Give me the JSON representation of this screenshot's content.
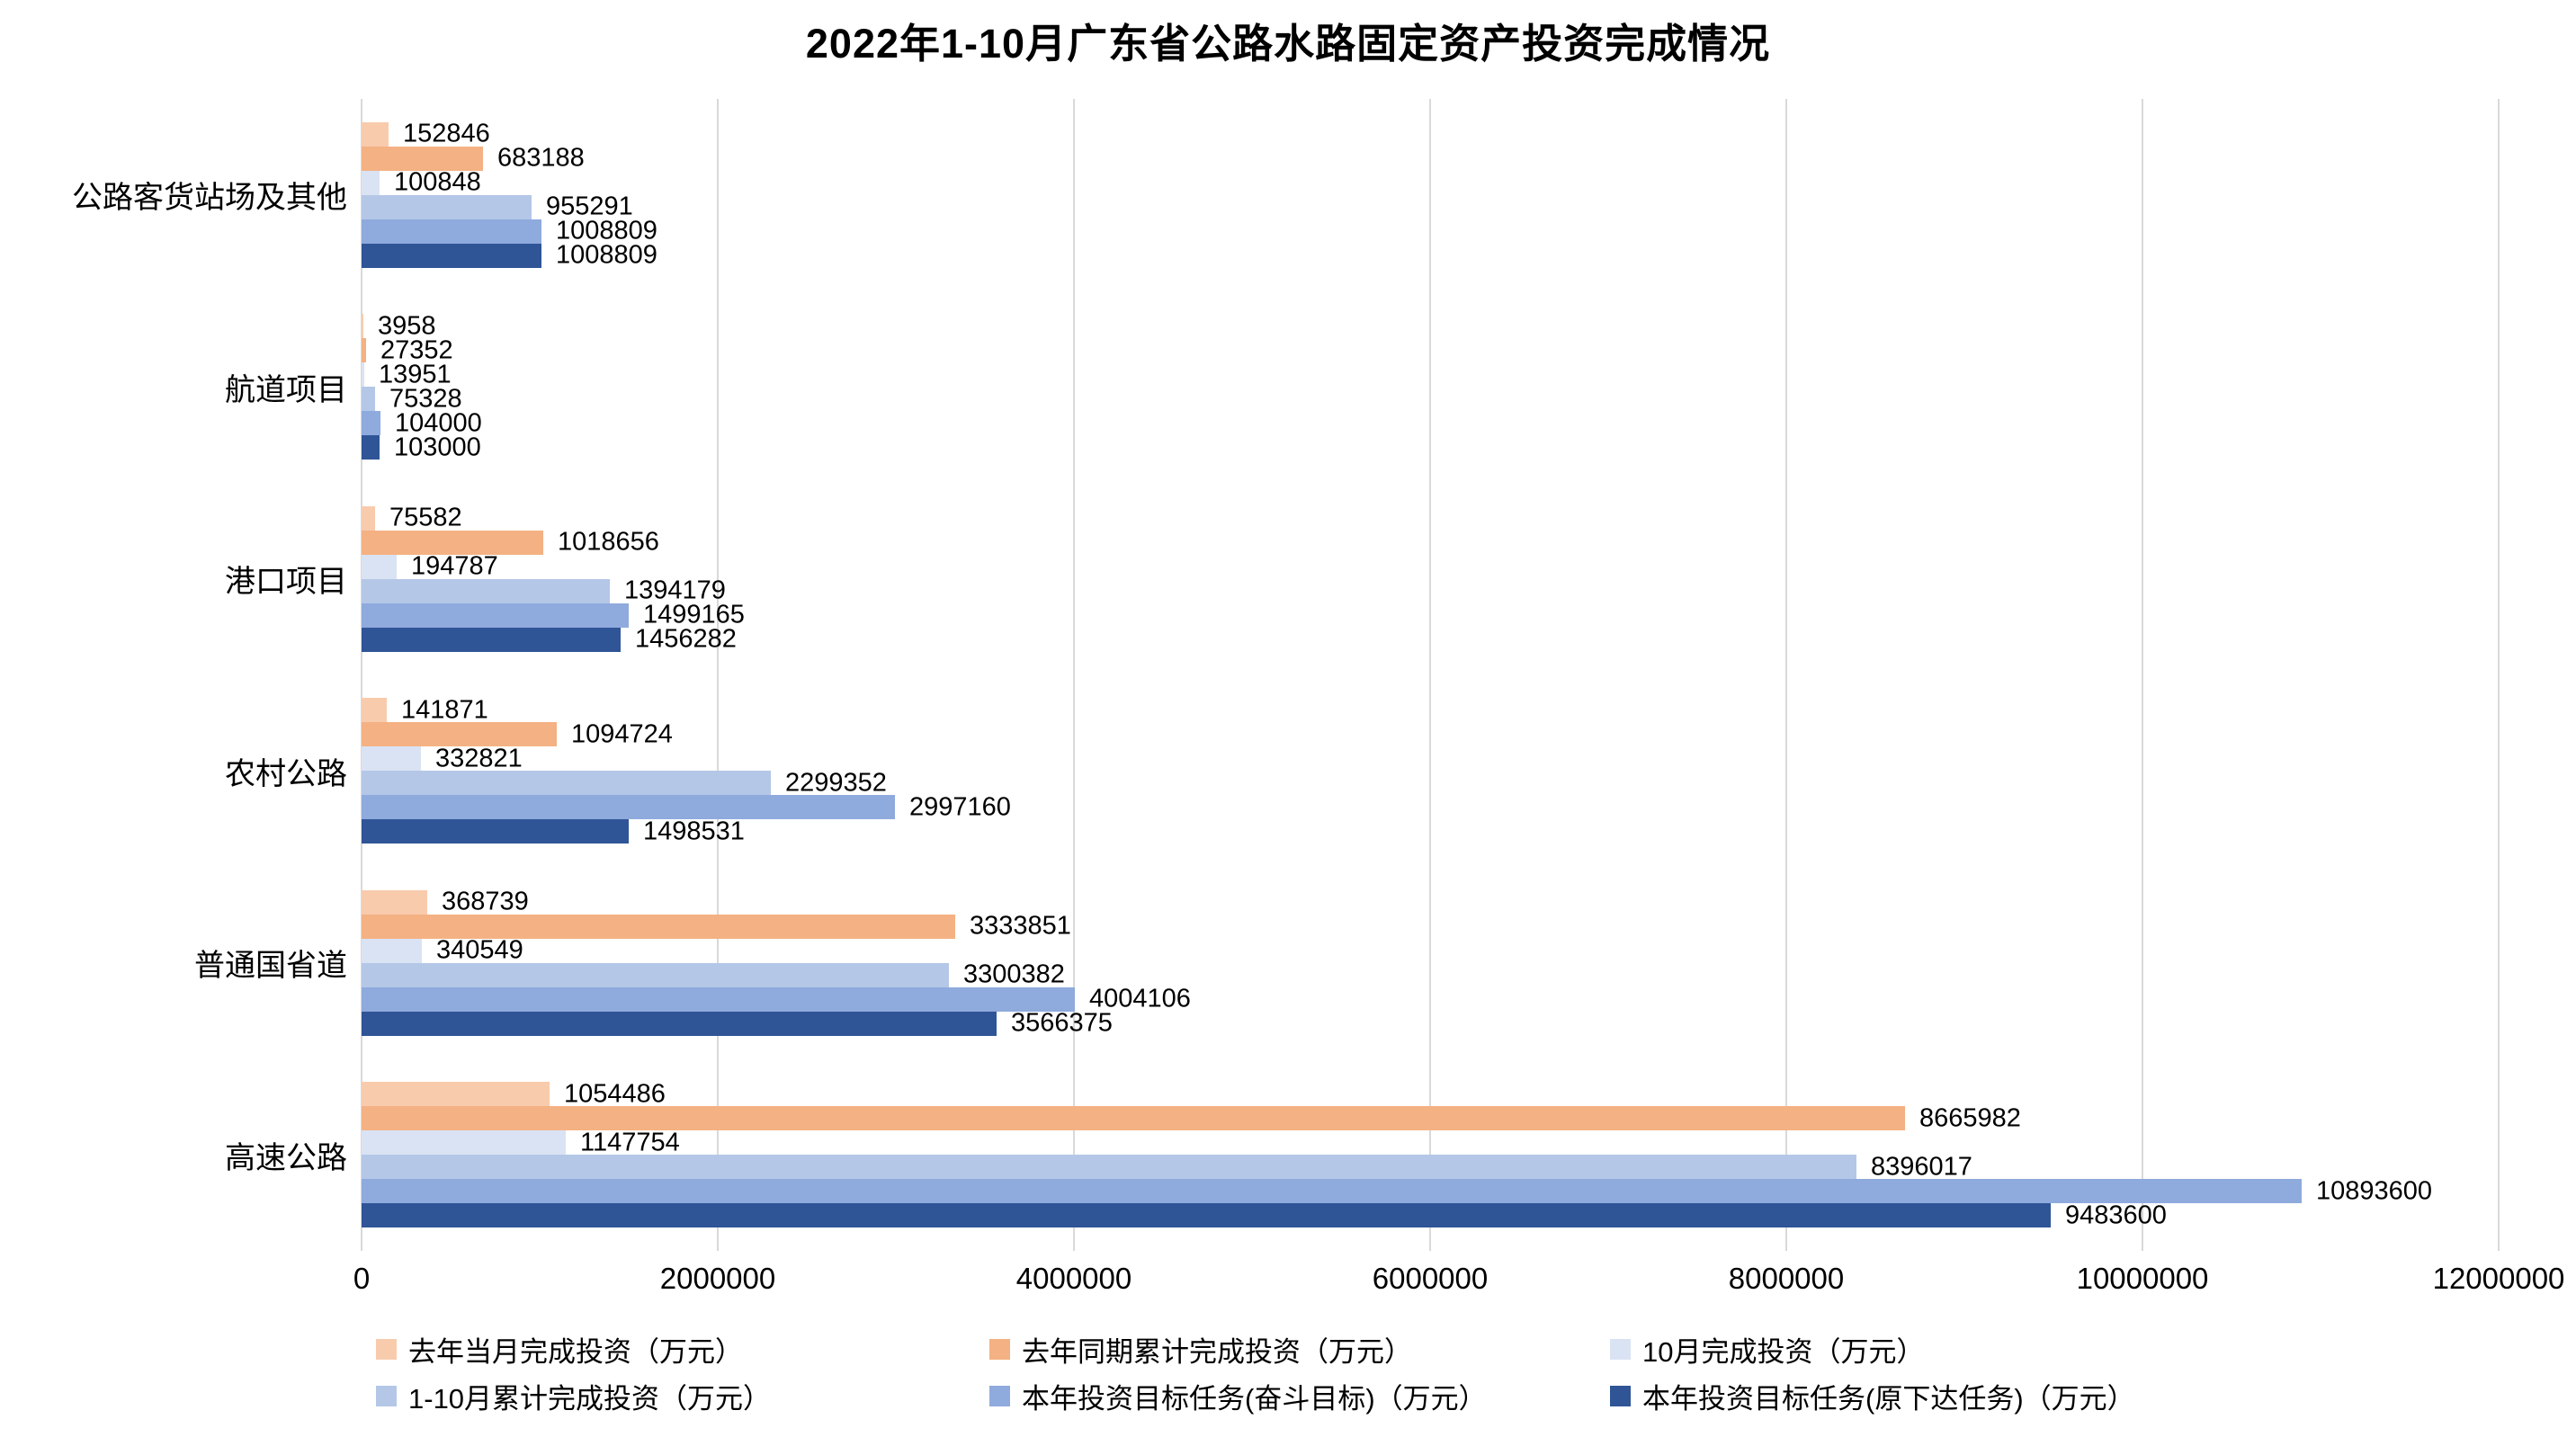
{
  "chart_data": {
    "type": "bar",
    "orientation": "horizontal",
    "title": "2022年1-10月广东省公路水路固定资产投资完成情况",
    "categories": [
      "公路客货站场及其他",
      "航道项目",
      "港口项目",
      "农村公路",
      "普通国省道",
      "高速公路"
    ],
    "series": [
      {
        "name": "去年当月完成投资（万元）",
        "color": "#F8CBAD",
        "values": [
          152846,
          3958,
          75582,
          141871,
          368739,
          1054486
        ]
      },
      {
        "name": "去年同期累计完成投资（万元）",
        "color": "#F4B183",
        "values": [
          683188,
          27352,
          1018656,
          1094724,
          3333851,
          8665982
        ]
      },
      {
        "name": "10月完成投资（万元）",
        "color": "#DAE3F3",
        "values": [
          100848,
          13951,
          194787,
          332821,
          340549,
          1147754
        ]
      },
      {
        "name": "1-10月累计完成投资（万元）",
        "color": "#B4C7E7",
        "values": [
          955291,
          75328,
          1394179,
          2299352,
          3300382,
          8396017
        ]
      },
      {
        "name": "本年投资目标任务(奋斗目标)（万元）",
        "color": "#8FAADC",
        "values": [
          1008809,
          104000,
          1499165,
          2997160,
          4004106,
          10893600
        ]
      },
      {
        "name": "本年投资目标任务(原下达任务)（万元）",
        "color": "#2F5597",
        "values": [
          1008809,
          103000,
          1456282,
          1498531,
          3566375,
          9483600
        ]
      }
    ],
    "x_axis": {
      "min": 0,
      "max": 12000000,
      "tick_interval": 2000000,
      "tick_labels": [
        "0",
        "2000000",
        "4000000",
        "6000000",
        "8000000",
        "10000000",
        "12000000"
      ]
    },
    "grid": true,
    "legend_position": "bottom",
    "data_labels": true
  },
  "colors": {
    "background": "#FFFFFF",
    "gridline": "#D9D9D9",
    "text": "#000000"
  }
}
